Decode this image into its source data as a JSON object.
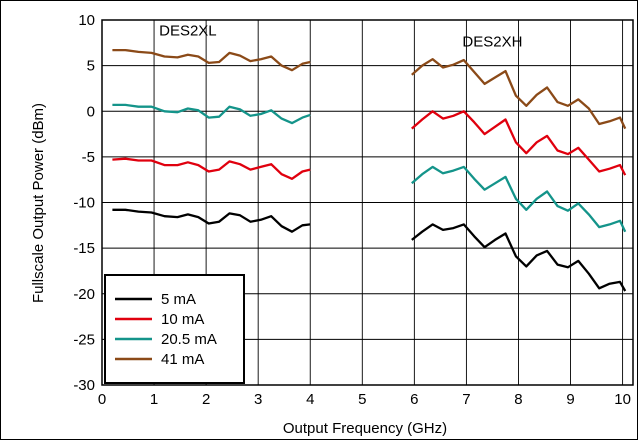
{
  "chart_data": {
    "type": "line",
    "xlabel": "Output Frequency (GHz)",
    "ylabel": "Fullscale Output Power (dBm)",
    "xlim": [
      0,
      10.2
    ],
    "ylim": [
      -30,
      10
    ],
    "xticks": [
      0,
      1,
      2,
      3,
      4,
      5,
      6,
      7,
      8,
      9,
      10
    ],
    "yticks": [
      -30,
      -25,
      -20,
      -15,
      -10,
      -5,
      0,
      5,
      10
    ],
    "grid": true,
    "legend_position": "bottom-left",
    "annotations": [
      {
        "text": "DES2XL",
        "x": 1.65,
        "y": 8.3
      },
      {
        "text": "DES2XH",
        "x": 7.5,
        "y": 7.1
      }
    ],
    "series": [
      {
        "name": "5 mA",
        "color": "#000000",
        "segments": [
          {
            "x": [
              0.2,
              0.45,
              0.7,
              0.95,
              1.2,
              1.45,
              1.65,
              1.85,
              2.05,
              2.25,
              2.45,
              2.65,
              2.85,
              3.05,
              3.25,
              3.45,
              3.65,
              3.85,
              4.0
            ],
            "y": [
              -10.8,
              -10.8,
              -11.0,
              -11.1,
              -11.5,
              -11.6,
              -11.3,
              -11.6,
              -12.3,
              -12.1,
              -11.2,
              -11.4,
              -12.1,
              -11.9,
              -11.5,
              -12.6,
              -13.2,
              -12.5,
              -12.4
            ]
          },
          {
            "x": [
              5.95,
              6.15,
              6.35,
              6.55,
              6.75,
              6.95,
              7.15,
              7.35,
              7.55,
              7.75,
              7.95,
              8.15,
              8.35,
              8.55,
              8.75,
              8.95,
              9.15,
              9.35,
              9.55,
              9.75,
              9.95,
              10.05
            ],
            "y": [
              -14.1,
              -13.2,
              -12.4,
              -13.0,
              -12.8,
              -12.4,
              -13.7,
              -14.9,
              -14.1,
              -13.4,
              -15.9,
              -17.0,
              -15.8,
              -15.3,
              -16.8,
              -17.1,
              -16.4,
              -17.8,
              -19.4,
              -18.9,
              -18.7,
              -19.7
            ]
          }
        ]
      },
      {
        "name": "10 mA",
        "color": "#e0000e",
        "segments": [
          {
            "x": [
              0.2,
              0.45,
              0.7,
              0.95,
              1.2,
              1.45,
              1.65,
              1.85,
              2.05,
              2.25,
              2.45,
              2.65,
              2.85,
              3.05,
              3.25,
              3.45,
              3.65,
              3.85,
              4.0
            ],
            "y": [
              -5.3,
              -5.2,
              -5.4,
              -5.4,
              -5.9,
              -5.9,
              -5.6,
              -5.9,
              -6.6,
              -6.4,
              -5.5,
              -5.8,
              -6.4,
              -6.1,
              -5.8,
              -6.9,
              -7.4,
              -6.6,
              -6.4
            ]
          },
          {
            "x": [
              5.95,
              6.15,
              6.35,
              6.55,
              6.75,
              6.95,
              7.15,
              7.35,
              7.55,
              7.75,
              7.95,
              8.15,
              8.35,
              8.55,
              8.75,
              8.95,
              9.15,
              9.35,
              9.55,
              9.75,
              9.95,
              10.05
            ],
            "y": [
              -1.9,
              -0.9,
              0.0,
              -0.8,
              -0.5,
              0.0,
              -1.2,
              -2.5,
              -1.7,
              -0.9,
              -3.4,
              -4.6,
              -3.4,
              -2.7,
              -4.3,
              -4.7,
              -4.0,
              -5.3,
              -6.6,
              -6.3,
              -5.9,
              -7.0
            ]
          }
        ]
      },
      {
        "name": "20.5 mA",
        "color": "#14948a",
        "segments": [
          {
            "x": [
              0.2,
              0.45,
              0.7,
              0.95,
              1.2,
              1.45,
              1.65,
              1.85,
              2.05,
              2.25,
              2.45,
              2.65,
              2.85,
              3.05,
              3.25,
              3.45,
              3.65,
              3.85,
              4.0
            ],
            "y": [
              0.7,
              0.7,
              0.5,
              0.5,
              0.0,
              -0.1,
              0.3,
              0.1,
              -0.7,
              -0.6,
              0.5,
              0.2,
              -0.5,
              -0.3,
              0.1,
              -0.8,
              -1.3,
              -0.7,
              -0.4
            ]
          },
          {
            "x": [
              5.95,
              6.15,
              6.35,
              6.55,
              6.75,
              6.95,
              7.15,
              7.35,
              7.55,
              7.75,
              7.95,
              8.15,
              8.35,
              8.55,
              8.75,
              8.95,
              9.15,
              9.35,
              9.55,
              9.75,
              9.95,
              10.05
            ],
            "y": [
              -7.9,
              -6.9,
              -6.1,
              -6.8,
              -6.5,
              -6.1,
              -7.4,
              -8.6,
              -7.9,
              -7.2,
              -9.6,
              -10.8,
              -9.6,
              -8.8,
              -10.4,
              -10.9,
              -10.1,
              -11.3,
              -12.7,
              -12.4,
              -12.0,
              -13.2
            ]
          }
        ]
      },
      {
        "name": "41 mA",
        "color": "#8b4a18",
        "segments": [
          {
            "x": [
              0.2,
              0.45,
              0.7,
              0.95,
              1.2,
              1.45,
              1.65,
              1.85,
              2.05,
              2.25,
              2.45,
              2.65,
              2.85,
              3.05,
              3.25,
              3.45,
              3.65,
              3.85,
              4.0
            ],
            "y": [
              6.7,
              6.7,
              6.5,
              6.4,
              6.0,
              5.9,
              6.2,
              6.0,
              5.3,
              5.4,
              6.4,
              6.1,
              5.5,
              5.7,
              6.0,
              5.0,
              4.5,
              5.2,
              5.4
            ]
          },
          {
            "x": [
              5.95,
              6.15,
              6.35,
              6.55,
              6.75,
              6.95,
              7.15,
              7.35,
              7.55,
              7.75,
              7.95,
              8.15,
              8.35,
              8.55,
              8.75,
              8.95,
              9.15,
              9.35,
              9.55,
              9.75,
              9.95,
              10.05
            ],
            "y": [
              4.0,
              5.0,
              5.7,
              4.8,
              5.1,
              5.6,
              4.3,
              3.0,
              3.7,
              4.4,
              1.7,
              0.6,
              1.8,
              2.6,
              1.0,
              0.6,
              1.3,
              0.3,
              -1.4,
              -1.1,
              -0.7,
              -1.9
            ]
          }
        ]
      }
    ]
  }
}
